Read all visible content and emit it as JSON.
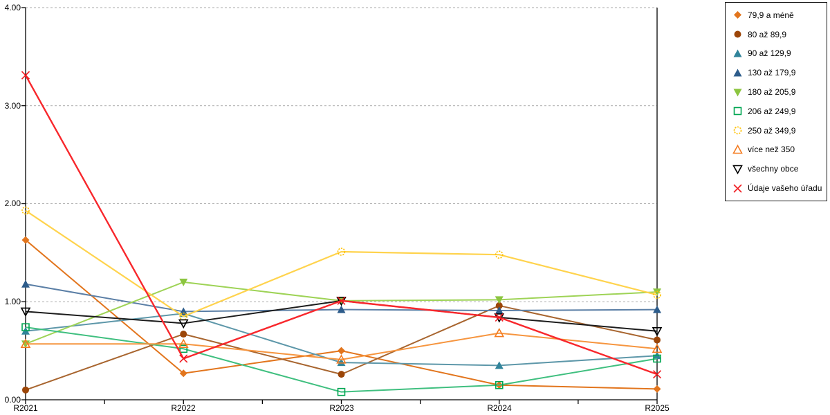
{
  "chart_data": {
    "type": "line",
    "title": "",
    "categories": [
      "R2021",
      "R2022",
      "R2023",
      "R2024",
      "R2025"
    ],
    "y_tick_labels": [
      "0.00",
      "1.00",
      "2.00",
      "3.00",
      "4.00"
    ],
    "ylim": [
      0,
      4
    ],
    "grid": "horizontal-dashed",
    "grid_color": "#aaaaaa",
    "axis_color": "#000000",
    "legend_position": "top-right",
    "series": [
      {
        "name": "79,9 a méně",
        "marker": "diamond",
        "marker_color": "#e2751d",
        "line_color": "#e2751d",
        "line_width": 2,
        "values": [
          1.63,
          0.27,
          0.5,
          0.15,
          0.11
        ]
      },
      {
        "name": "80 až 89,9",
        "marker": "circle",
        "marker_color": "#9c4608",
        "line_color": "#a8652f",
        "line_width": 2,
        "values": [
          0.1,
          0.67,
          0.26,
          0.96,
          0.61
        ]
      },
      {
        "name": "90 až 129,9",
        "marker": "triangle-up",
        "marker_color": "#31849b",
        "line_color": "#5d97a9",
        "line_width": 2,
        "values": [
          0.7,
          0.88,
          0.38,
          0.35,
          0.45
        ]
      },
      {
        "name": "130 až 179,9",
        "marker": "triangle-up",
        "marker_color": "#2d5c8b",
        "line_color": "#5b7fa6",
        "line_width": 2,
        "values": [
          1.18,
          0.9,
          0.92,
          0.91,
          0.92
        ]
      },
      {
        "name": "180 až 205,9",
        "marker": "triangle-down",
        "marker_color": "#8cc540",
        "line_color": "#9ed356",
        "line_width": 2,
        "values": [
          0.57,
          1.2,
          1.01,
          1.02,
          1.1
        ]
      },
      {
        "name": "206 až 249,9",
        "marker": "square-open",
        "marker_color": "#00a652",
        "line_color": "#3fbf7f",
        "line_width": 2,
        "values": [
          0.74,
          0.52,
          0.08,
          0.15,
          0.42
        ]
      },
      {
        "name": "250 až 349,9",
        "marker": "circle-open-dash",
        "marker_color": "#ffc000",
        "line_color": "#ffd34d",
        "line_width": 2.2,
        "values": [
          1.93,
          0.85,
          1.51,
          1.48,
          1.07
        ]
      },
      {
        "name": "více než 350",
        "marker": "triangle-up-open",
        "marker_color": "#f47b20",
        "line_color": "#f6953f",
        "line_width": 2,
        "values": [
          0.57,
          0.57,
          0.41,
          0.68,
          0.52
        ]
      },
      {
        "name": "všechny obce",
        "marker": "triangle-down-open",
        "marker_color": "#000000",
        "line_color": "#1d1d1d",
        "line_width": 2,
        "values": [
          0.9,
          0.78,
          1.01,
          0.84,
          0.7
        ]
      },
      {
        "name": "Údaje vašeho úřadu",
        "marker": "x",
        "marker_color": "#f0191f",
        "line_color": "#f8272c",
        "line_width": 2.4,
        "values": [
          3.31,
          0.42,
          1.01,
          0.84,
          0.26
        ]
      }
    ]
  }
}
